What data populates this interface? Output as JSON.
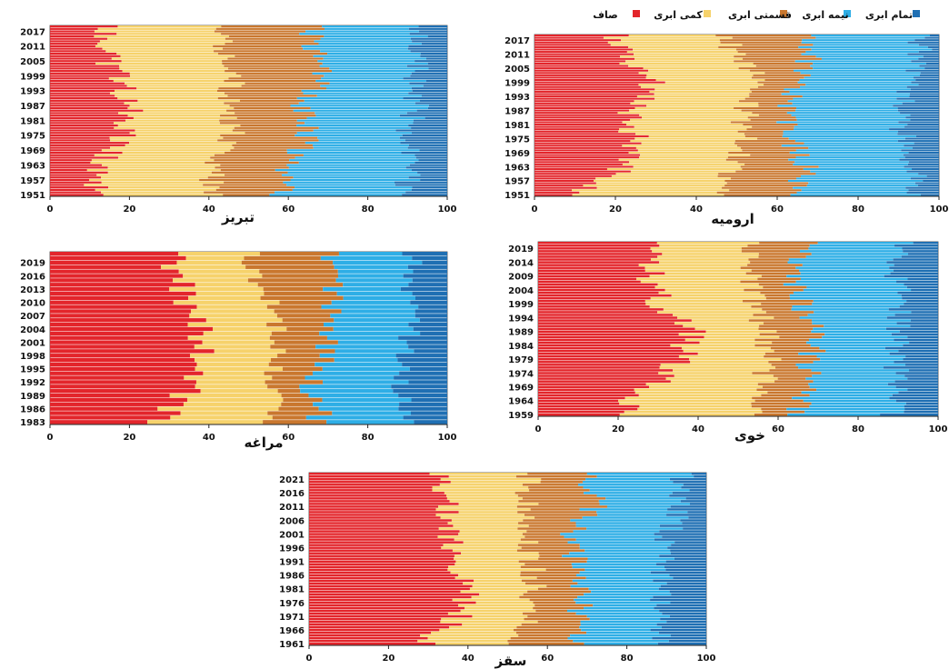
{
  "chart_data": {
    "type": "bar",
    "orientation": "horizontal-stacked-percent",
    "xlim": [
      0,
      100
    ],
    "x_ticks": [
      "0",
      "20",
      "40",
      "60",
      "80",
      "100"
    ],
    "legend": {
      "placement": "top-right",
      "entries": [
        {
          "label": "صاف",
          "color": "#e3252b"
        },
        {
          "label": "کمی ابری",
          "color": "#f6d26b"
        },
        {
          "label": "قسمتی ابری",
          "color": "#c9772e"
        },
        {
          "label": "نیمه ابری",
          "color": "#2eaee6"
        },
        {
          "label": "تمام ابری",
          "color": "#1f6fb3"
        }
      ]
    },
    "series_names": [
      "صاف",
      "کمی ابری",
      "قسمتی ابری",
      "نیمه ابری",
      "تمام ابری"
    ],
    "panels": [
      {
        "id": "tabriz",
        "station": "تبریز",
        "y_ticks": [
          "2017",
          "2011",
          "2005",
          "1999",
          "1993",
          "1987",
          "1981",
          "1975",
          "1969",
          "1963",
          "1957",
          "1951"
        ],
        "year_start": 1951,
        "year_end": 2019,
        "profile": [
          {
            "year": 1951,
            "cum": [
              11,
              42,
              58,
              90
            ]
          },
          {
            "year": 1963,
            "cum": [
              12,
              40,
              60,
              90
            ]
          },
          {
            "year": 1975,
            "cum": [
              18,
              46,
              65,
              90
            ]
          },
          {
            "year": 1987,
            "cum": [
              20,
              44,
              64,
              92
            ]
          },
          {
            "year": 1999,
            "cum": [
              17,
              47,
              68,
              92
            ]
          },
          {
            "year": 2011,
            "cum": [
              13,
              44,
              66,
              93
            ]
          },
          {
            "year": 2019,
            "cum": [
              14,
              43,
              66,
              93
            ]
          }
        ]
      },
      {
        "id": "urmia",
        "station": "ارومیه",
        "y_ticks": [
          "2017",
          "2011",
          "2005",
          "1999",
          "1993",
          "1987",
          "1981",
          "1975",
          "1969",
          "1963",
          "1957",
          "1951"
        ],
        "year_start": 1951,
        "year_end": 2019,
        "profile": [
          {
            "year": 1951,
            "cum": [
              10,
              45,
              65,
              95
            ]
          },
          {
            "year": 1963,
            "cum": [
              22,
              50,
              67,
              93
            ]
          },
          {
            "year": 1975,
            "cum": [
              25,
              52,
              63,
              91
            ]
          },
          {
            "year": 1987,
            "cum": [
              23,
              52,
              62,
              91
            ]
          },
          {
            "year": 1999,
            "cum": [
              30,
              56,
              66,
              93
            ]
          },
          {
            "year": 2011,
            "cum": [
              21,
              49,
              68,
              95
            ]
          },
          {
            "year": 2019,
            "cum": [
              20,
              48,
              68,
              95
            ]
          }
        ]
      },
      {
        "id": "maragheh",
        "station": "مراغه",
        "y_ticks": [
          "2019",
          "2016",
          "2013",
          "2010",
          "2007",
          "2004",
          "2001",
          "1998",
          "1995",
          "1992",
          "1989",
          "1986",
          "1983"
        ],
        "year_start": 1983,
        "year_end": 2021,
        "profile": [
          {
            "year": 1983,
            "cum": [
              28,
              55,
              68,
              90
            ]
          },
          {
            "year": 1992,
            "cum": [
              37,
              56,
              66,
              89
            ]
          },
          {
            "year": 2001,
            "cum": [
              39,
              57,
              70,
              90
            ]
          },
          {
            "year": 2010,
            "cum": [
              35,
              55,
              72,
              91
            ]
          },
          {
            "year": 2021,
            "cum": [
              30,
              50,
              70,
              90
            ]
          }
        ]
      },
      {
        "id": "khoy",
        "station": "خوی",
        "y_ticks": [
          "2019",
          "2014",
          "2009",
          "2004",
          "1999",
          "1994",
          "1989",
          "1984",
          "1979",
          "1974",
          "1969",
          "1964",
          "1959"
        ],
        "year_start": 1959,
        "year_end": 2021,
        "profile": [
          {
            "year": 1959,
            "cum": [
              20,
              55,
              65,
              88
            ]
          },
          {
            "year": 1969,
            "cum": [
              28,
              56,
              67,
              90
            ]
          },
          {
            "year": 1979,
            "cum": [
              36,
              58,
              68,
              89
            ]
          },
          {
            "year": 1989,
            "cum": [
              38,
              57,
              70,
              90
            ]
          },
          {
            "year": 1999,
            "cum": [
              30,
              54,
              66,
              91
            ]
          },
          {
            "year": 2009,
            "cum": [
              28,
              54,
              64,
              90
            ]
          },
          {
            "year": 2021,
            "cum": [
              30,
              53,
              67,
              91
            ]
          }
        ]
      },
      {
        "id": "saqqez",
        "station": "سقز",
        "y_ticks": [
          "2021",
          "2016",
          "2011",
          "2006",
          "2001",
          "1996",
          "1991",
          "1986",
          "1981",
          "1976",
          "1971",
          "1966",
          "1961"
        ],
        "year_start": 1961,
        "year_end": 2023,
        "profile": [
          {
            "year": 1961,
            "cum": [
              28,
              52,
              68,
              88
            ]
          },
          {
            "year": 1971,
            "cum": [
              38,
              55,
              68,
              89
            ]
          },
          {
            "year": 1981,
            "cum": [
              40,
              57,
              68,
              89
            ]
          },
          {
            "year": 1991,
            "cum": [
              38,
              56,
              67,
              89
            ]
          },
          {
            "year": 2001,
            "cum": [
              36,
              55,
              66,
              90
            ]
          },
          {
            "year": 2011,
            "cum": [
              35,
              55,
              72,
              94
            ]
          },
          {
            "year": 2023,
            "cum": [
              34,
              55,
              70,
              94
            ]
          }
        ]
      }
    ]
  }
}
